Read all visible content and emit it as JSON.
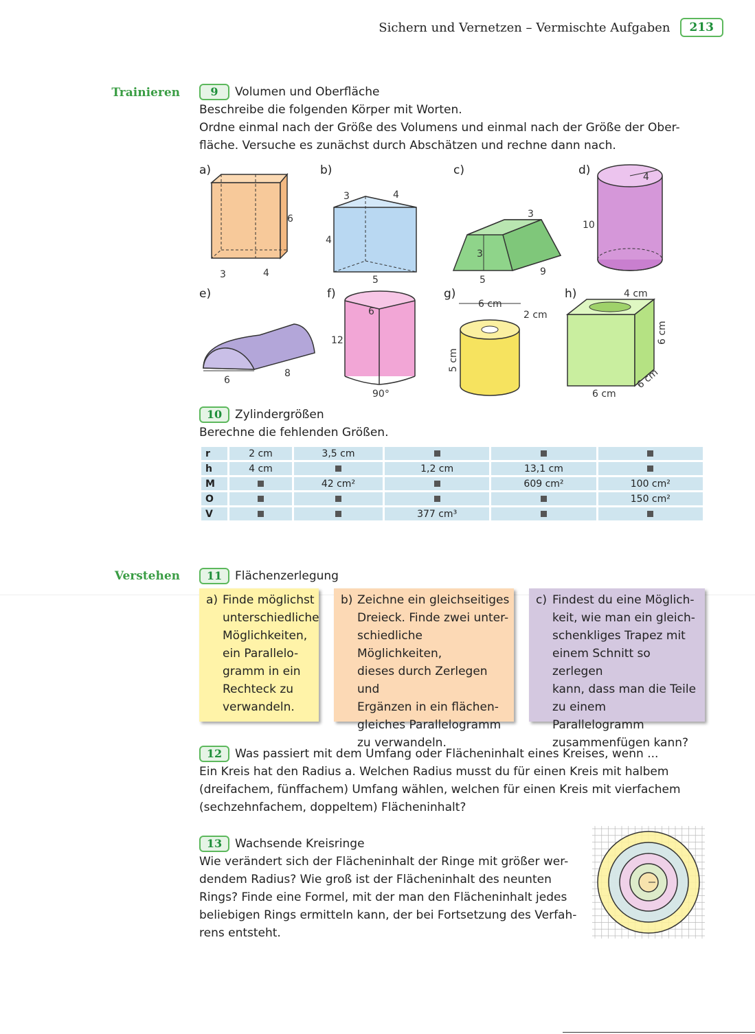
{
  "header": {
    "title": "Sichern und Vernetzen – Vermischte Aufgaben",
    "page_number": "213"
  },
  "sections": {
    "trainieren": "Trainieren",
    "verstehen": "Verstehen"
  },
  "task9": {
    "number": "9",
    "title": "Volumen und Oberfläche",
    "text1": "Beschreibe die folgenden Körper mit Worten.",
    "text2": "Ordne einmal nach der Größe des Volumens und einmal nach der Größe der Ober-",
    "text3": "fläche. Versuche es zunächst durch Abschätzen und rechne dann nach.",
    "figures": {
      "a": {
        "label": "a)",
        "dims": [
          "6",
          "3",
          "4"
        ]
      },
      "b": {
        "label": "b)",
        "dims": [
          "3",
          "4",
          "4",
          "5"
        ]
      },
      "c": {
        "label": "c)",
        "dims": [
          "3",
          "3",
          "5",
          "9"
        ]
      },
      "d": {
        "label": "d)",
        "dims": [
          "4",
          "10"
        ]
      },
      "e": {
        "label": "e)",
        "dims": [
          "6",
          "8"
        ]
      },
      "f": {
        "label": "f)",
        "dims": [
          "6",
          "12",
          "90°"
        ]
      },
      "g": {
        "label": "g)",
        "dims": [
          "6 cm",
          "2 cm",
          "5 cm"
        ]
      },
      "h": {
        "label": "h)",
        "dims": [
          "4 cm",
          "6 cm",
          "6 cm",
          "6 cm"
        ]
      }
    }
  },
  "task10": {
    "number": "10",
    "title": "Zylindergrößen",
    "text": "Berechne die fehlenden Größen.",
    "rows": [
      {
        "head": "r",
        "cells": [
          "2 cm",
          "3,5 cm",
          "■",
          "■",
          "■"
        ]
      },
      {
        "head": "h",
        "cells": [
          "4 cm",
          "■",
          "1,2 cm",
          "13,1 cm",
          "■"
        ]
      },
      {
        "head": "M",
        "cells": [
          "■",
          "42 cm²",
          "■",
          "609 cm²",
          "100 cm²"
        ]
      },
      {
        "head": "O",
        "cells": [
          "■",
          "■",
          "■",
          "■",
          "150 cm²"
        ]
      },
      {
        "head": "V",
        "cells": [
          "■",
          "■",
          "377 cm³",
          "■",
          "■"
        ]
      }
    ]
  },
  "task11": {
    "number": "11",
    "title": "Flächenzerlegung",
    "cards": [
      {
        "label": "a)",
        "color": "#fff3a8",
        "lines": [
          "Finde möglichst",
          "unterschiedliche",
          "Möglichkeiten,",
          "ein Parallelo-",
          "gramm in ein",
          "Rechteck zu",
          "verwandeln."
        ]
      },
      {
        "label": "b)",
        "color": "#fcd9b5",
        "lines": [
          "Zeichne ein gleichseitiges",
          "Dreieck. Finde zwei unter-",
          "schiedliche Möglichkeiten,",
          "dieses durch Zerlegen und",
          "Ergänzen in ein flächen-",
          "gleiches Parallelogramm",
          "zu verwandeln."
        ]
      },
      {
        "label": "c)",
        "color": "#d4c8e0",
        "lines": [
          "Findest du eine Möglich-",
          "keit, wie man ein gleich-",
          "schenkliges Trapez mit",
          "einem Schnitt so zerlegen",
          "kann, dass man die Teile",
          "zu einem Parallelogramm",
          "zusammenfügen kann?"
        ]
      }
    ]
  },
  "task12": {
    "number": "12",
    "title": "Was passiert mit dem Umfang oder Flächeninhalt eines Kreises, wenn ...",
    "lines": [
      "Ein Kreis hat den Radius a. Welchen Radius musst du für einen Kreis mit halbem",
      "(dreifachem, fünffachem) Umfang wählen, welchen für einen Kreis mit vierfachem",
      "(sechzehnfachem, doppeltem) Flächeninhalt?"
    ]
  },
  "task13": {
    "number": "13",
    "title": "Wachsende Kreisringe",
    "lines": [
      "Wie verändert sich der Flächeninhalt der Ringe mit größer wer-",
      "dendem Radius? Wie groß ist der Flächeninhalt des neunten",
      "Rings? Finde eine Formel, mit der man den Flächeninhalt jedes",
      "beliebigen Rings ermitteln kann, der bei Fortsetzung des Verfah-",
      "rens entsteht."
    ],
    "ring_colors": [
      "#fdf19a",
      "#cfe4f2",
      "#f3cde8",
      "#d9f0c4",
      "#fbe2a8"
    ]
  }
}
